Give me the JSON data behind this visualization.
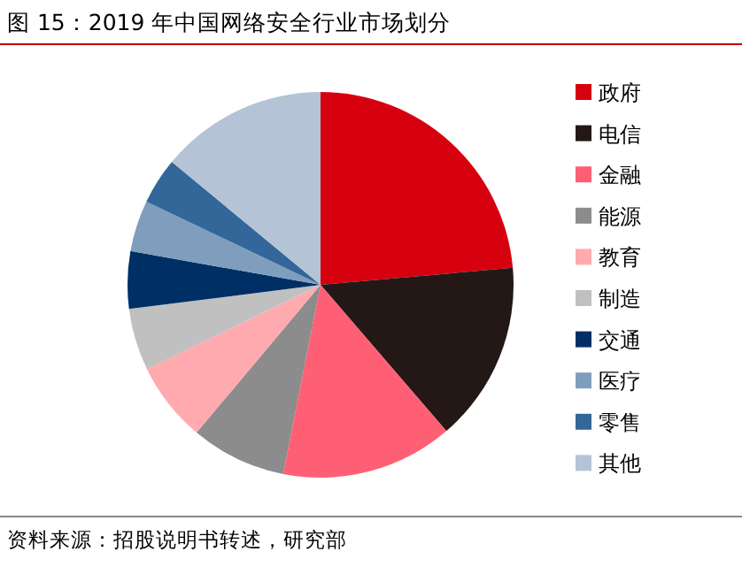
{
  "chart_data": {
    "type": "pie",
    "title": "图 15：2019 年中国网络安全行业市场划分",
    "categories": [
      "政府",
      "电信",
      "金融",
      "能源",
      "教育",
      "制造",
      "交通",
      "医疗",
      "零售",
      "其他"
    ],
    "values": [
      23.6,
      15.1,
      14.4,
      8.0,
      6.7,
      5.2,
      4.8,
      4.3,
      3.9,
      14.0
    ],
    "colors": [
      "#d7000f",
      "#231815",
      "#ff5f74",
      "#8c8c8c",
      "#ffaaaf",
      "#c0c0c0",
      "#002f65",
      "#7f9ebd",
      "#336699",
      "#b4c4d6"
    ],
    "legend": "right",
    "annotations": [
      "资料来源：招股说明书转述，研究部"
    ]
  }
}
